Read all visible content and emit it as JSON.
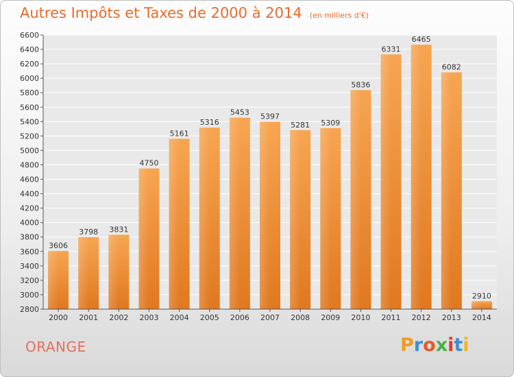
{
  "header": {
    "title": "Autres Impôts et Taxes de 2000 à 2014",
    "subtitle": "(en milliers d'€)"
  },
  "footer": {
    "city": "ORANGE",
    "logo_text": "Proxiti",
    "logo_colors": [
      "#f29a1f",
      "#3c8ed6",
      "#e35c2a",
      "#48b04a",
      "#e03a2a",
      "#3c8ed6",
      "#f2b61f"
    ]
  },
  "chart_data": {
    "type": "bar",
    "title": "Autres Impôts et Taxes de 2000 à 2014",
    "subtitle": "(en milliers d'€)",
    "categories": [
      "2000",
      "2001",
      "2002",
      "2003",
      "2004",
      "2005",
      "2006",
      "2007",
      "2008",
      "2009",
      "2010",
      "2011",
      "2012",
      "2013",
      "2014"
    ],
    "values": [
      3606,
      3798,
      3831,
      4750,
      5161,
      5316,
      5453,
      5397,
      5281,
      5309,
      5836,
      6331,
      6465,
      6082,
      2910
    ],
    "ylim": [
      2800,
      6600
    ],
    "ytick_step": 200,
    "grid": true,
    "bar_color_top": "#f7a552",
    "bar_color_bottom": "#e0781f"
  }
}
